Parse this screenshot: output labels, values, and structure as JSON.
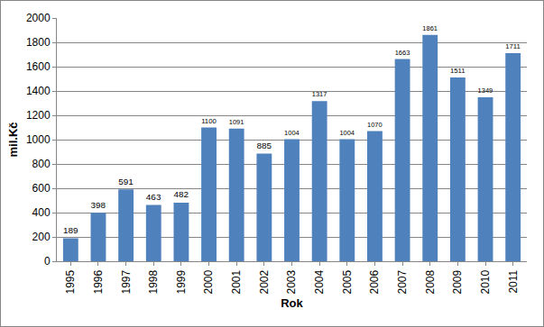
{
  "chart_data": {
    "type": "bar",
    "x_label": "Rok",
    "y_label": "mil.Kč",
    "categories": [
      "1995",
      "1996",
      "1997",
      "1998",
      "1999",
      "2000",
      "2001",
      "2002",
      "2003",
      "2004",
      "2005",
      "2006",
      "2007",
      "2008",
      "2009",
      "2010",
      "2011"
    ],
    "values": [
      189,
      398,
      591,
      463,
      482,
      1100,
      1091,
      885,
      1004,
      1317,
      1004,
      1070,
      1663,
      1861,
      1511,
      1349,
      1711
    ],
    "color": "#4f81bd",
    "ylim": [
      0,
      2000
    ],
    "yticks": [
      0,
      200,
      400,
      600,
      800,
      1000,
      1200,
      1400,
      1600,
      1800,
      2000
    ],
    "grid": true,
    "data_labels": true
  }
}
